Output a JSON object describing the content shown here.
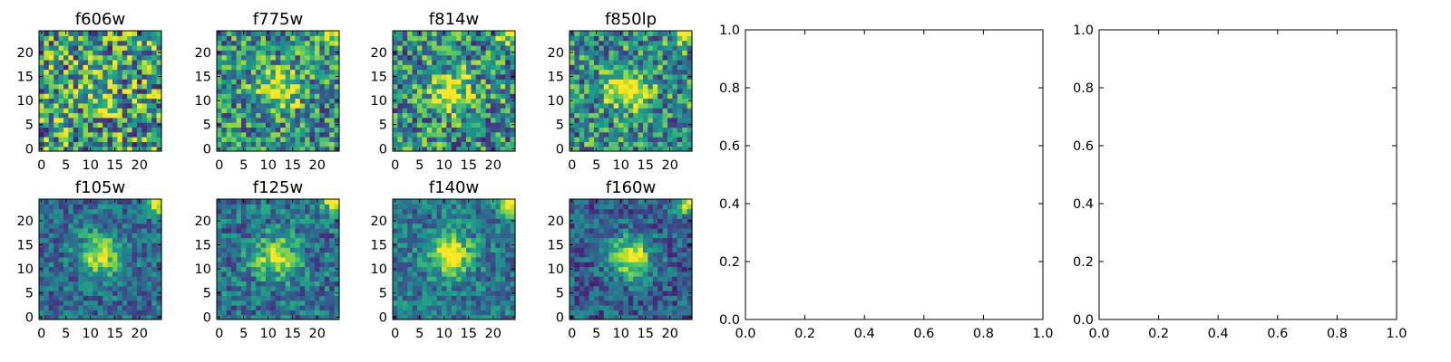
{
  "figure": {
    "colormap": "viridis",
    "background": "#ffffff"
  },
  "chart_data": [
    {
      "type": "heatmap",
      "title": "f606w",
      "xticks": [
        "0",
        "5",
        "10",
        "15",
        "20"
      ],
      "yticks": [
        "0",
        "5",
        "10",
        "15",
        "20"
      ],
      "xlim": [
        0,
        24
      ],
      "ylim": [
        0,
        24
      ],
      "grid": 25,
      "center": [
        12,
        12
      ],
      "peak": 0.2,
      "noise": 0.95,
      "corner": 0.3,
      "base": 0.55
    },
    {
      "type": "heatmap",
      "title": "f775w",
      "xticks": [
        "0",
        "5",
        "10",
        "15",
        "20"
      ],
      "yticks": [
        "0",
        "5",
        "10",
        "15",
        "20"
      ],
      "xlim": [
        0,
        24
      ],
      "ylim": [
        0,
        24
      ],
      "grid": 25,
      "center": [
        12,
        12.5
      ],
      "peak": 0.55,
      "noise": 0.75,
      "corner": 0.55,
      "base": 0.5
    },
    {
      "type": "heatmap",
      "title": "f814w",
      "xticks": [
        "0",
        "5",
        "10",
        "15",
        "20"
      ],
      "yticks": [
        "0",
        "5",
        "10",
        "15",
        "20"
      ],
      "xlim": [
        0,
        24
      ],
      "ylim": [
        0,
        24
      ],
      "grid": 25,
      "center": [
        11.5,
        12
      ],
      "peak": 0.5,
      "noise": 0.8,
      "corner": 0.6,
      "base": 0.5
    },
    {
      "type": "heatmap",
      "title": "f850lp",
      "xticks": [
        "0",
        "5",
        "10",
        "15",
        "20"
      ],
      "yticks": [
        "0",
        "5",
        "10",
        "15",
        "20"
      ],
      "xlim": [
        0,
        24
      ],
      "ylim": [
        0,
        24
      ],
      "grid": 25,
      "center": [
        11,
        12.5
      ],
      "peak": 0.55,
      "noise": 0.75,
      "corner": 0.6,
      "base": 0.5
    },
    {
      "type": "heatmap",
      "title": "f105w",
      "xticks": [
        "0",
        "5",
        "10",
        "15",
        "20"
      ],
      "yticks": [
        "0",
        "5",
        "10",
        "15",
        "20"
      ],
      "xlim": [
        0,
        24
      ],
      "ylim": [
        0,
        24
      ],
      "grid": 25,
      "center": [
        12,
        13
      ],
      "peak": 0.6,
      "noise": 0.45,
      "corner": 0.75,
      "base": 0.35
    },
    {
      "type": "heatmap",
      "title": "f125w",
      "xticks": [
        "0",
        "5",
        "10",
        "15",
        "20"
      ],
      "yticks": [
        "0",
        "5",
        "10",
        "15",
        "20"
      ],
      "xlim": [
        0,
        24
      ],
      "ylim": [
        0,
        24
      ],
      "grid": 25,
      "center": [
        11.5,
        12.5
      ],
      "peak": 0.55,
      "noise": 0.5,
      "corner": 0.75,
      "base": 0.38
    },
    {
      "type": "heatmap",
      "title": "f140w",
      "xticks": [
        "0",
        "5",
        "10",
        "15",
        "20"
      ],
      "yticks": [
        "0",
        "5",
        "10",
        "15",
        "20"
      ],
      "xlim": [
        0,
        24
      ],
      "ylim": [
        0,
        24
      ],
      "grid": 25,
      "center": [
        11.5,
        13
      ],
      "peak": 0.6,
      "noise": 0.45,
      "corner": 0.75,
      "base": 0.4
    },
    {
      "type": "heatmap",
      "title": "f160w",
      "xticks": [
        "0",
        "5",
        "10",
        "15",
        "20"
      ],
      "yticks": [
        "0",
        "5",
        "10",
        "15",
        "20"
      ],
      "xlim": [
        0,
        24
      ],
      "ylim": [
        0,
        24
      ],
      "grid": 25,
      "center": [
        12,
        12.5
      ],
      "peak": 0.7,
      "noise": 0.45,
      "corner": 0.8,
      "base": 0.3
    },
    {
      "type": "line",
      "title": "",
      "series": [],
      "xlim": [
        0.0,
        1.0
      ],
      "ylim": [
        0.0,
        1.0
      ],
      "xticks": [
        "0.0",
        "0.2",
        "0.4",
        "0.6",
        "0.8",
        "1.0"
      ],
      "yticks": [
        "0.0",
        "0.2",
        "0.4",
        "0.6",
        "0.8",
        "1.0"
      ]
    },
    {
      "type": "line",
      "title": "",
      "series": [],
      "xlim": [
        0.0,
        1.0
      ],
      "ylim": [
        0.0,
        1.0
      ],
      "xticks": [
        "0.0",
        "0.2",
        "0.4",
        "0.6",
        "0.8",
        "1.0"
      ],
      "yticks": [
        "0.0",
        "0.2",
        "0.4",
        "0.6",
        "0.8",
        "1.0"
      ]
    }
  ]
}
